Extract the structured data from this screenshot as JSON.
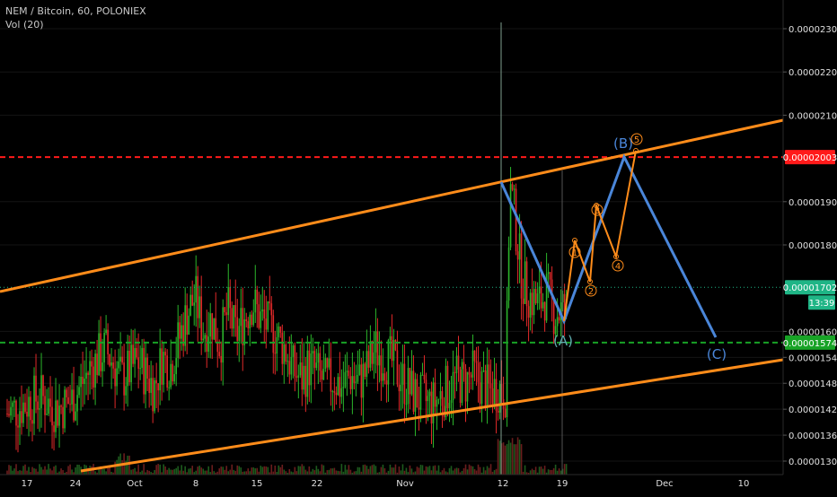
{
  "legend": {
    "title": "NEM / Bitcoin, 60, POLONIEX",
    "volume": "Vol (20)"
  },
  "chart_data": {
    "type": "candlestick",
    "symbol": "NEM / Bitcoin",
    "interval": "60",
    "exchange": "POLONIEX",
    "y_axis": {
      "ylim": [
        1.28e-05,
        2.34e-05
      ],
      "ticks": [
        "0.00002300",
        "0.00002200",
        "0.00002100",
        "0.00001900",
        "0.00001800",
        "0.00001600",
        "0.00001540",
        "0.00001480",
        "0.00001420",
        "0.00001360",
        "0.00001300"
      ],
      "tick_values": [
        2.3e-05,
        2.2e-05,
        2.1e-05,
        1.9e-05,
        1.8e-05,
        1.6e-05,
        1.54e-05,
        1.48e-05,
        1.42e-05,
        1.36e-05,
        1.3e-05
      ]
    },
    "x_axis": {
      "ticks": [
        "17",
        "24",
        "Oct",
        "8",
        "15",
        "22",
        "Nov",
        "12",
        "19",
        "Dec",
        "10"
      ]
    },
    "price_labels": [
      {
        "text": "0.00002003",
        "value": 2.003e-05,
        "color": "#ff1a1a"
      },
      {
        "text": "0.00001702",
        "value": 1.702e-05,
        "color": "#1fb586"
      },
      {
        "text": "13:39",
        "color": "#1fb586"
      },
      {
        "text": "0.00001574",
        "value": 1.574e-05,
        "color": "#18a326"
      }
    ],
    "horizontal_levels": [
      {
        "value": 2.003e-05,
        "style": "dashed",
        "color": "#ff1a1a"
      },
      {
        "value": 1.702e-05,
        "style": "dotted",
        "color": "#1fb586"
      },
      {
        "value": 1.574e-05,
        "style": "dashed",
        "color": "#18a326"
      }
    ],
    "channel_color": "#ff8c1a",
    "wave_colors": {
      "abc": "#4a86d9",
      "impulse": "#ff8c1a"
    },
    "wave_labels": [
      "(A)",
      "(B)",
      "(C)",
      "1",
      "2",
      "3",
      "4",
      "5"
    ],
    "price_path": [
      [
        0,
        1.41e-05
      ],
      [
        2,
        1.43e-05
      ],
      [
        4,
        1.45e-05
      ],
      [
        6,
        1.42e-05
      ],
      [
        8,
        1.44e-05
      ],
      [
        10,
        1.51e-05
      ],
      [
        12,
        1.56e-05
      ],
      [
        14,
        1.49e-05
      ],
      [
        16,
        1.53e-05
      ],
      [
        18,
        1.47e-05
      ],
      [
        19,
        1.54e-05
      ],
      [
        20,
        1.52e-05
      ],
      [
        21,
        1.58e-05
      ],
      [
        22,
        1.64e-05
      ],
      [
        23,
        1.68e-05
      ],
      [
        24,
        1.6e-05
      ],
      [
        25,
        1.63e-05
      ],
      [
        26,
        1.57e-05
      ],
      [
        27,
        1.65e-05
      ],
      [
        28,
        1.59e-05
      ],
      [
        29,
        1.63e-05
      ],
      [
        30,
        1.67e-05
      ],
      [
        31,
        1.63e-05
      ],
      [
        32,
        1.61e-05
      ],
      [
        33,
        1.59e-05
      ],
      [
        34,
        1.56e-05
      ],
      [
        35,
        1.51e-05
      ],
      [
        36,
        1.49e-05
      ],
      [
        37,
        1.52e-05
      ],
      [
        38,
        1.5e-05
      ],
      [
        39,
        1.48e-05
      ],
      [
        40,
        1.49e-05
      ],
      [
        41,
        1.47e-05
      ],
      [
        42,
        1.5e-05
      ],
      [
        43,
        1.48e-05
      ],
      [
        44,
        1.51e-05
      ],
      [
        45,
        1.56e-05
      ],
      [
        46,
        1.54e-05
      ],
      [
        47,
        1.53e-05
      ],
      [
        48,
        1.5e-05
      ],
      [
        49,
        1.47e-05
      ],
      [
        50,
        1.45e-05
      ],
      [
        51,
        1.44e-05
      ],
      [
        52,
        1.43e-05
      ],
      [
        53,
        1.45e-05
      ],
      [
        54,
        1.47e-05
      ],
      [
        55,
        1.49e-05
      ],
      [
        56,
        1.48e-05
      ],
      [
        57,
        1.5e-05
      ],
      [
        58,
        1.48e-05
      ],
      [
        59,
        1.46e-05
      ],
      [
        60,
        1.47e-05
      ],
      [
        61,
        1.46e-05
      ],
      [
        61.5,
        1.94e-05
      ],
      [
        62,
        1.88e-05
      ],
      [
        63,
        1.72e-05
      ],
      [
        64,
        1.68e-05
      ],
      [
        65,
        1.66e-05
      ],
      [
        66,
        1.69e-05
      ],
      [
        67,
        1.64e-05
      ],
      [
        68,
        1.65e-05
      ],
      [
        69,
        1.62e-05
      ],
      [
        70,
        1.6e-05
      ]
    ],
    "wave_path_abc": [
      [
        61,
        1.93e-05
      ],
      [
        69.5,
        1.6e-05
      ],
      [
        77,
        2.01e-05
      ],
      [
        88,
        1.56e-05
      ]
    ],
    "wave_path_impulse": [
      [
        69.5,
        1.6e-05
      ],
      [
        71,
        1.75e-05
      ],
      [
        73,
        1.7e-05
      ],
      [
        74,
        1.83e-05
      ],
      [
        76,
        1.74e-05
      ],
      [
        78,
        2.01e-05
      ]
    ]
  }
}
